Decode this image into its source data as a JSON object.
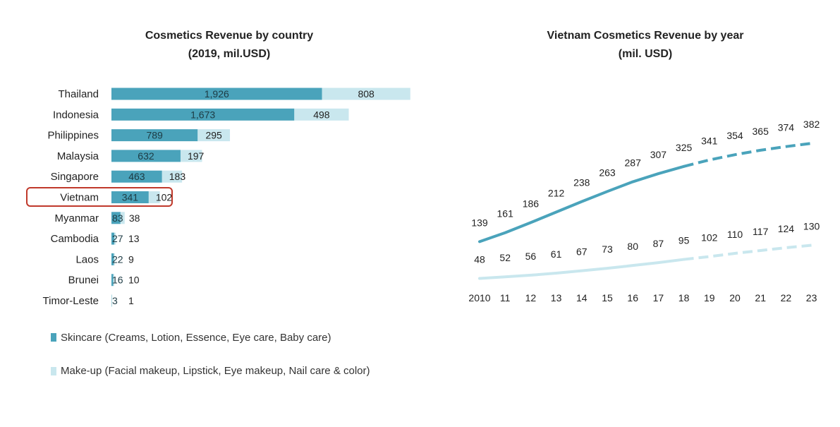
{
  "colors": {
    "skincare": "#4aa3bb",
    "makeup": "#c9e7ee",
    "highlight": "#c0392b"
  },
  "left_title": {
    "line1": "Cosmetics Revenue by country",
    "line2": "(2019, mil.USD)"
  },
  "right_title": {
    "line1": "Vietnam Cosmetics Revenue by year",
    "line2": "(mil. USD)"
  },
  "legend": {
    "skincare": "Skincare (Creams, Lotion, Essence, Eye care, Baby care)",
    "makeup": "Make-up (Facial makeup, Lipstick, Eye makeup, Nail care & color)"
  },
  "chart_data": [
    {
      "type": "bar",
      "orientation": "horizontal",
      "stacked": true,
      "title": "Cosmetics Revenue by country (2019, mil.USD)",
      "categories": [
        "Thailand",
        "Indonesia",
        "Philippines",
        "Malaysia",
        "Singapore",
        "Vietnam",
        "Myanmar",
        "Cambodia",
        "Laos",
        "Brunei",
        "Timor-Leste"
      ],
      "highlighted_category": "Vietnam",
      "series": [
        {
          "name": "Skincare (Creams, Lotion, Essence, Eye care, Baby care)",
          "values": [
            1926,
            1673,
            789,
            632,
            463,
            341,
            83,
            27,
            22,
            16,
            3
          ]
        },
        {
          "name": "Make-up (Facial makeup, Lipstick, Eye makeup, Nail care & color)",
          "values": [
            808,
            498,
            295,
            197,
            183,
            102,
            38,
            13,
            9,
            10,
            1
          ]
        }
      ],
      "value_labels": [
        [
          "1,926",
          "1,673",
          "789",
          "632",
          "463",
          "341",
          "83",
          "27",
          "22",
          "16",
          "3"
        ],
        [
          "808",
          "498",
          "295",
          "197",
          "183",
          "102",
          "38",
          "13",
          "9",
          "10",
          "1"
        ]
      ],
      "legend_position": "bottom-left"
    },
    {
      "type": "line",
      "title": "Vietnam Cosmetics Revenue by year (mil. USD)",
      "x": [
        "2010",
        "11",
        "12",
        "13",
        "14",
        "15",
        "16",
        "17",
        "18",
        "19",
        "20",
        "21",
        "22",
        "23"
      ],
      "forecast_from_index": 8,
      "ylim": [
        0,
        400
      ],
      "series": [
        {
          "name": "Skincare",
          "values": [
            139,
            161,
            186,
            212,
            238,
            263,
            287,
            307,
            325,
            341,
            354,
            365,
            374,
            382
          ]
        },
        {
          "name": "Make-up",
          "values": [
            48,
            52,
            56,
            61,
            67,
            73,
            80,
            87,
            95,
            102,
            110,
            117,
            124,
            130
          ]
        }
      ]
    }
  ]
}
